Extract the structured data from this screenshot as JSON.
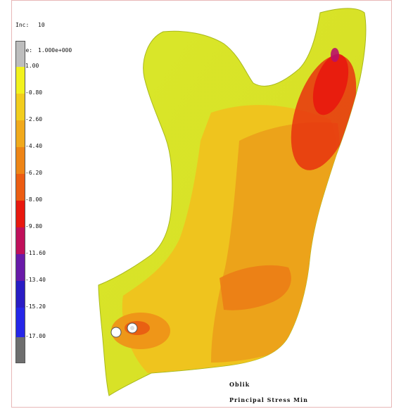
{
  "header": {
    "inc_label": "Inc:",
    "inc_value": "10",
    "time_label": "Time:",
    "time_value": "1.000e+000"
  },
  "legend": {
    "labels": [
      "1.00",
      "-0.80",
      "-2.60",
      "-4.40",
      "-6.20",
      "-8.00",
      "-9.80",
      "-11.60",
      "-13.40",
      "-15.20",
      "-17.00"
    ],
    "colors": [
      "#bdbdbd",
      "#f2f21e",
      "#f2cd1e",
      "#f1a91c",
      "#ee8416",
      "#ec5c12",
      "#e8180e",
      "#c0105a",
      "#6a1aa8",
      "#2a1cc4",
      "#2626e8",
      "#6e6e6e"
    ]
  },
  "captions": {
    "view": "Oblik",
    "result": "Principal Stress Min"
  }
}
